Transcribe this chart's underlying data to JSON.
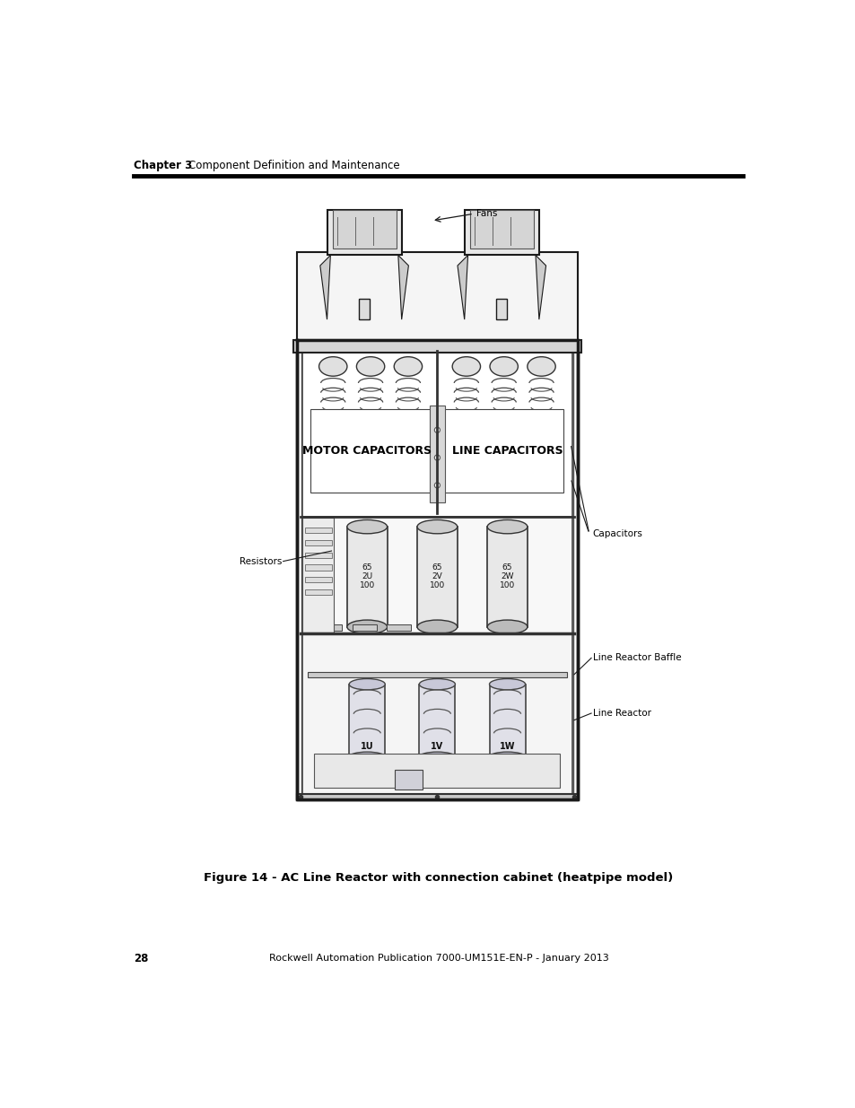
{
  "page_number": "28",
  "chapter_label": "Chapter 3",
  "chapter_title": "Component Definition and Maintenance",
  "footer_text": "Rockwell Automation Publication 7000-UM151E-EN-P - January 2013",
  "figure_caption": "Figure 14 - AC Line Reactor with connection cabinet (heatpipe model)",
  "bg_color": "#ffffff",
  "label_fans": "Fans",
  "label_motor_cap": "MOTOR CAPACITORS",
  "label_line_cap": "LINE CAPACITORS",
  "label_capacitors": "Capacitors",
  "label_resistors": "Resistors",
  "label_line_reactor_baffle": "Line Reactor Baffle",
  "label_line_reactor": "Line Reactor"
}
